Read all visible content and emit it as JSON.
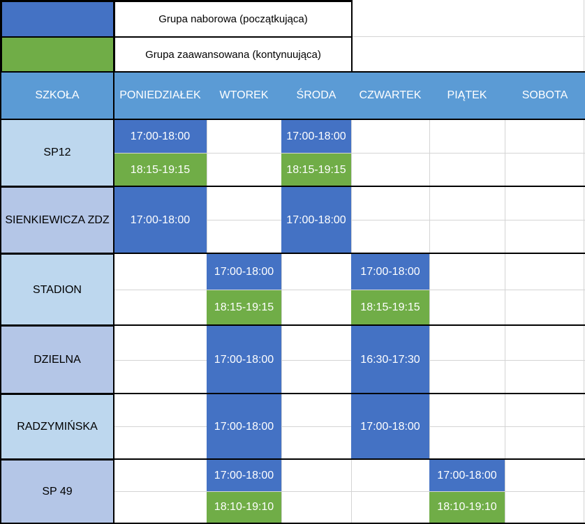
{
  "legend": {
    "beginner": {
      "label": "Grupa naborowa (początkująca)",
      "color": "#4472c4"
    },
    "advanced": {
      "label": "Grupa zaawansowana (kontynuująca)",
      "color": "#70ad47"
    }
  },
  "header": [
    "SZKOŁA",
    "PONIEDZIAŁEK",
    "WTOREK",
    "ŚRODA",
    "CZWARTEK",
    "PIĄTEK",
    "SOBOTA"
  ],
  "schools": [
    {
      "name": "SP12"
    },
    {
      "name": "SIENKIEWICZA ZDZ"
    },
    {
      "name": "STADION"
    },
    {
      "name": "DZIELNA"
    },
    {
      "name": "RADZYMIŃSKA"
    },
    {
      "name": "SP 49"
    }
  ],
  "slots": {
    "sp12_mon_1": "17:00-18:00",
    "sp12_mon_2": "18:15-19:15",
    "sp12_wed_1": "17:00-18:00",
    "sp12_wed_2": "18:15-19:15",
    "sienk_mon": "17:00-18:00",
    "sienk_wed": "17:00-18:00",
    "stadion_tue_1": "17:00-18:00",
    "stadion_tue_2": "18:15-19:15",
    "stadion_thu_1": "17:00-18:00",
    "stadion_thu_2": "18:15-19:15",
    "dzielna_tue": "17:00-18:00",
    "dzielna_thu": "16:30-17:30",
    "radz_tue": "17:00-18:00",
    "radz_thu": "17:00-18:00",
    "sp49_tue_1": "17:00-18:00",
    "sp49_tue_2": "18:10-19:10",
    "sp49_fri_1": "17:00-18:00",
    "sp49_fri_2": "18:10-19:10"
  }
}
